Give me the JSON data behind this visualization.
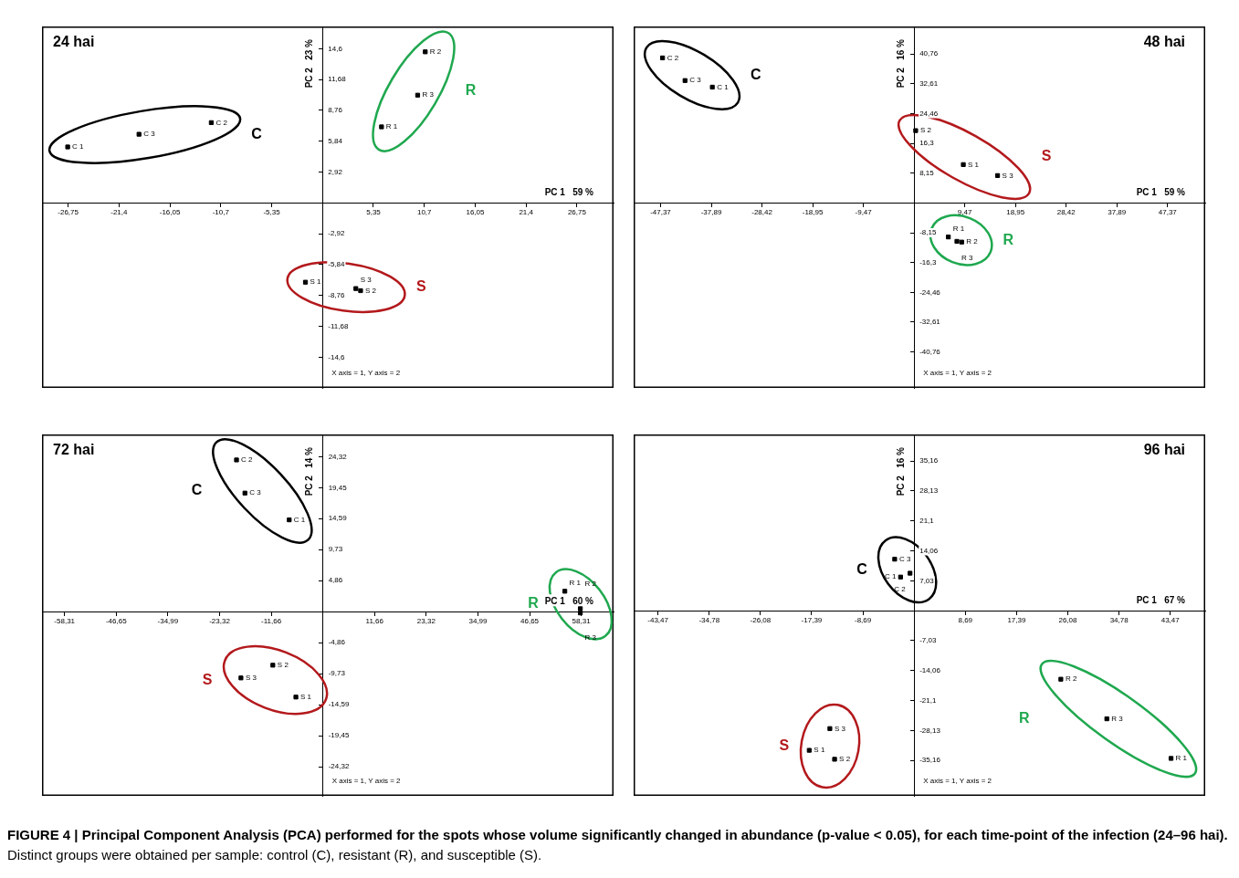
{
  "chart_data": [
    {
      "type": "scatter",
      "title": "24 hai",
      "xlabel": "PC 1   59 %",
      "ylabel": "PC 2   23 %",
      "marker": "square",
      "xlim": [
        -29.5,
        30.6
      ],
      "ylim": [
        -17.5,
        16.7
      ],
      "xticks": [
        {
          "value": -26.75,
          "label": "-26,75"
        },
        {
          "value": -21.4,
          "label": "-21,4"
        },
        {
          "value": -16.05,
          "label": "-16,05"
        },
        {
          "value": -10.7,
          "label": "-10,7"
        },
        {
          "value": -5.35,
          "label": "-5,35"
        },
        {
          "value": 5.35,
          "label": "5,35"
        },
        {
          "value": 10.7,
          "label": "10,7"
        },
        {
          "value": 16.05,
          "label": "16,05"
        },
        {
          "value": 21.4,
          "label": "21,4"
        },
        {
          "value": 26.75,
          "label": "26,75"
        }
      ],
      "yticks": [
        {
          "value": -14.6,
          "label": "-14,6"
        },
        {
          "value": -11.68,
          "label": "-11,68"
        },
        {
          "value": -8.76,
          "label": "-8,76"
        },
        {
          "value": -5.84,
          "label": "-5,84"
        },
        {
          "value": -2.92,
          "label": "-2,92"
        },
        {
          "value": 2.92,
          "label": "2,92"
        },
        {
          "value": 5.84,
          "label": "5,84"
        },
        {
          "value": 8.76,
          "label": "8,76"
        },
        {
          "value": 11.68,
          "label": "11,68"
        },
        {
          "value": 14.6,
          "label": "14,6"
        }
      ],
      "series": [
        {
          "color": "#000000",
          "x": [
            -26.8,
            -19.3,
            -11.7
          ],
          "values": [
            5.3,
            6.5,
            7.6
          ],
          "value_labels": [
            "C 1",
            "C 3",
            "C 2"
          ]
        },
        {
          "color": "#000000",
          "x": [
            6.2,
            10.0,
            10.8
          ],
          "values": [
            7.2,
            10.2,
            14.3
          ],
          "value_labels": [
            "R 1",
            "R 3",
            "R 2"
          ]
        },
        {
          "color": "#000000",
          "x": [
            -1.8,
            3.5,
            4.0
          ],
          "values": [
            -7.5,
            -8.1,
            -8.3
          ],
          "value_labels": [
            "S 1",
            "S 3",
            "S 2"
          ]
        }
      ],
      "annotations": [
        "C",
        "R",
        "S",
        "X axis = 1, Y axis = 2"
      ]
    },
    {
      "type": "scatter",
      "title": "48 hai",
      "xlabel": "PC 1   59 %",
      "ylabel": "PC 2   16 %",
      "marker": "square",
      "xlim": [
        -52.4,
        54.4
      ],
      "ylim": [
        -50.6,
        48.3
      ],
      "xticks": [
        {
          "value": -47.37,
          "label": "-47,37"
        },
        {
          "value": -37.89,
          "label": "-37,89"
        },
        {
          "value": -28.42,
          "label": "-28,42"
        },
        {
          "value": -18.95,
          "label": "-18,95"
        },
        {
          "value": -9.47,
          "label": "-9,47"
        },
        {
          "value": 9.47,
          "label": "9,47"
        },
        {
          "value": 18.95,
          "label": "18,95"
        },
        {
          "value": 28.42,
          "label": "28,42"
        },
        {
          "value": 37.89,
          "label": "37,89"
        },
        {
          "value": 47.37,
          "label": "47,37"
        }
      ],
      "yticks": [
        {
          "value": -40.76,
          "label": "-40,76"
        },
        {
          "value": -32.61,
          "label": "-32,61"
        },
        {
          "value": -24.46,
          "label": "-24,46"
        },
        {
          "value": -16.3,
          "label": "-16,3"
        },
        {
          "value": -8.15,
          "label": "-8,15"
        },
        {
          "value": 8.15,
          "label": "8,15"
        },
        {
          "value": 16.3,
          "label": "16,3"
        },
        {
          "value": 24.46,
          "label": "24,46"
        },
        {
          "value": 32.61,
          "label": "32,61"
        },
        {
          "value": 40.76,
          "label": "40,76"
        }
      ],
      "series": [
        {
          "color": "#000000",
          "x": [
            -47.0,
            -42.8,
            -37.7
          ],
          "values": [
            39.7,
            33.5,
            31.7
          ],
          "value_labels": [
            "C 2",
            "C 3",
            "C 1"
          ]
        },
        {
          "color": "#000000",
          "x": [
            6.4,
            8.0,
            8.9
          ],
          "values": [
            -9.3,
            -10.5,
            -10.7
          ],
          "value_labels": [
            "R 1",
            "R 3",
            "R 2"
          ]
        },
        {
          "color": "#000000",
          "x": [
            0.3,
            9.2,
            15.6
          ],
          "values": [
            19.8,
            10.5,
            7.5
          ],
          "value_labels": [
            "S 2",
            "S 1",
            "S 3"
          ]
        }
      ],
      "annotations": [
        "C",
        "R",
        "S",
        "X axis = 1, Y axis = 2"
      ]
    },
    {
      "type": "scatter",
      "title": "72 hai",
      "xlabel": "PC 1   60 %",
      "ylabel": "PC 2   14 %",
      "marker": "square",
      "xlim": [
        -63.4,
        65.6
      ],
      "ylim": [
        -28.9,
        27.8
      ],
      "xticks": [
        {
          "value": -58.31,
          "label": "-58,31"
        },
        {
          "value": -46.65,
          "label": "-46,65"
        },
        {
          "value": -34.99,
          "label": "-34,99"
        },
        {
          "value": -23.32,
          "label": "-23,32"
        },
        {
          "value": -11.66,
          "label": "-11,66"
        },
        {
          "value": 11.66,
          "label": "11,66"
        },
        {
          "value": 23.32,
          "label": "23,32"
        },
        {
          "value": 34.99,
          "label": "34,99"
        },
        {
          "value": 46.65,
          "label": "46,65"
        },
        {
          "value": 58.31,
          "label": "58,31"
        }
      ],
      "yticks": [
        {
          "value": -24.32,
          "label": "-24,32"
        },
        {
          "value": -19.45,
          "label": "-19,45"
        },
        {
          "value": -14.59,
          "label": "-14,59"
        },
        {
          "value": -9.73,
          "label": "-9,73"
        },
        {
          "value": -4.86,
          "label": "-4,86"
        },
        {
          "value": 4.86,
          "label": "4,86"
        },
        {
          "value": 9.73,
          "label": "9,73"
        },
        {
          "value": 14.59,
          "label": "14,59"
        },
        {
          "value": 19.45,
          "label": "19,45"
        },
        {
          "value": 24.32,
          "label": "24,32"
        }
      ],
      "series": [
        {
          "color": "#000000",
          "x": [
            -19.5,
            -17.6,
            -7.6
          ],
          "values": [
            23.8,
            18.6,
            14.4
          ],
          "value_labels": [
            "C 2",
            "C 3",
            "C 1"
          ]
        },
        {
          "color": "#000000",
          "x": [
            54.6,
            58.1,
            58.1
          ],
          "values": [
            3.2,
            0.5,
            -0.2
          ],
          "value_labels": [
            "R 1",
            "R 2",
            "R 3"
          ]
        },
        {
          "color": "#000000",
          "x": [
            -11.3,
            -18.5,
            -6.1
          ],
          "values": [
            -8.4,
            -10.4,
            -13.4
          ],
          "value_labels": [
            "S 2",
            "S 3",
            "S 1"
          ]
        }
      ],
      "annotations": [
        "C",
        "R",
        "S",
        "X axis = 1, Y axis = 2"
      ]
    },
    {
      "type": "scatter",
      "title": "96 hai",
      "xlabel": "PC 1   67 %",
      "ylabel": "PC 2   16 %",
      "marker": "square",
      "xlim": [
        -47.6,
        49.4
      ],
      "ylim": [
        -43.5,
        41.4
      ],
      "xticks": [
        {
          "value": -43.47,
          "label": "-43,47"
        },
        {
          "value": -34.78,
          "label": "-34,78"
        },
        {
          "value": -26.08,
          "label": "-26,08"
        },
        {
          "value": -17.39,
          "label": "-17,39"
        },
        {
          "value": -8.69,
          "label": "-8,69"
        },
        {
          "value": 8.69,
          "label": "8,69"
        },
        {
          "value": 17.39,
          "label": "17,39"
        },
        {
          "value": 26.08,
          "label": "26,08"
        },
        {
          "value": 34.78,
          "label": "34,78"
        },
        {
          "value": 43.47,
          "label": "43,47"
        }
      ],
      "yticks": [
        {
          "value": -35.16,
          "label": "-35,16"
        },
        {
          "value": -28.13,
          "label": "-28,13"
        },
        {
          "value": -21.1,
          "label": "-21,1"
        },
        {
          "value": -14.06,
          "label": "-14,06"
        },
        {
          "value": -7.03,
          "label": "-7,03"
        },
        {
          "value": 7.03,
          "label": "7,03"
        },
        {
          "value": 14.06,
          "label": "14,06"
        },
        {
          "value": 21.1,
          "label": "21,1"
        },
        {
          "value": 28.13,
          "label": "28,13"
        },
        {
          "value": 35.16,
          "label": "35,16"
        }
      ],
      "series": [
        {
          "color": "#000000",
          "x": [
            -3.3,
            -2.3,
            -0.7
          ],
          "values": [
            12.1,
            7.9,
            8.8
          ],
          "value_labels": [
            "C 3",
            "C 1",
            "C 2"
          ]
        },
        {
          "color": "#000000",
          "x": [
            24.9,
            32.7,
            43.6
          ],
          "values": [
            -16.1,
            -25.4,
            -34.7
          ],
          "value_labels": [
            "R 2",
            "R 3",
            "R 1"
          ]
        },
        {
          "color": "#000000",
          "x": [
            -14.3,
            -17.8,
            -13.5
          ],
          "values": [
            -27.7,
            -32.8,
            -34.9
          ],
          "value_labels": [
            "S 3",
            "S 1",
            "S 2"
          ]
        }
      ],
      "annotations": [
        "C",
        "R",
        "S",
        "X axis = 1, Y axis = 2"
      ]
    },
    {
      "type": "other",
      "title": "FIGURE 4 | Principal Component Analysis (PCA) performed for the spots whose volume significantly changed in abundance (p-value < 0.05), for each time-point of the infection (24–96 hai).",
      "subtitle": "Distinct groups were obtained per sample: control (C), resistant (R), and susceptible (S)."
    }
  ]
}
